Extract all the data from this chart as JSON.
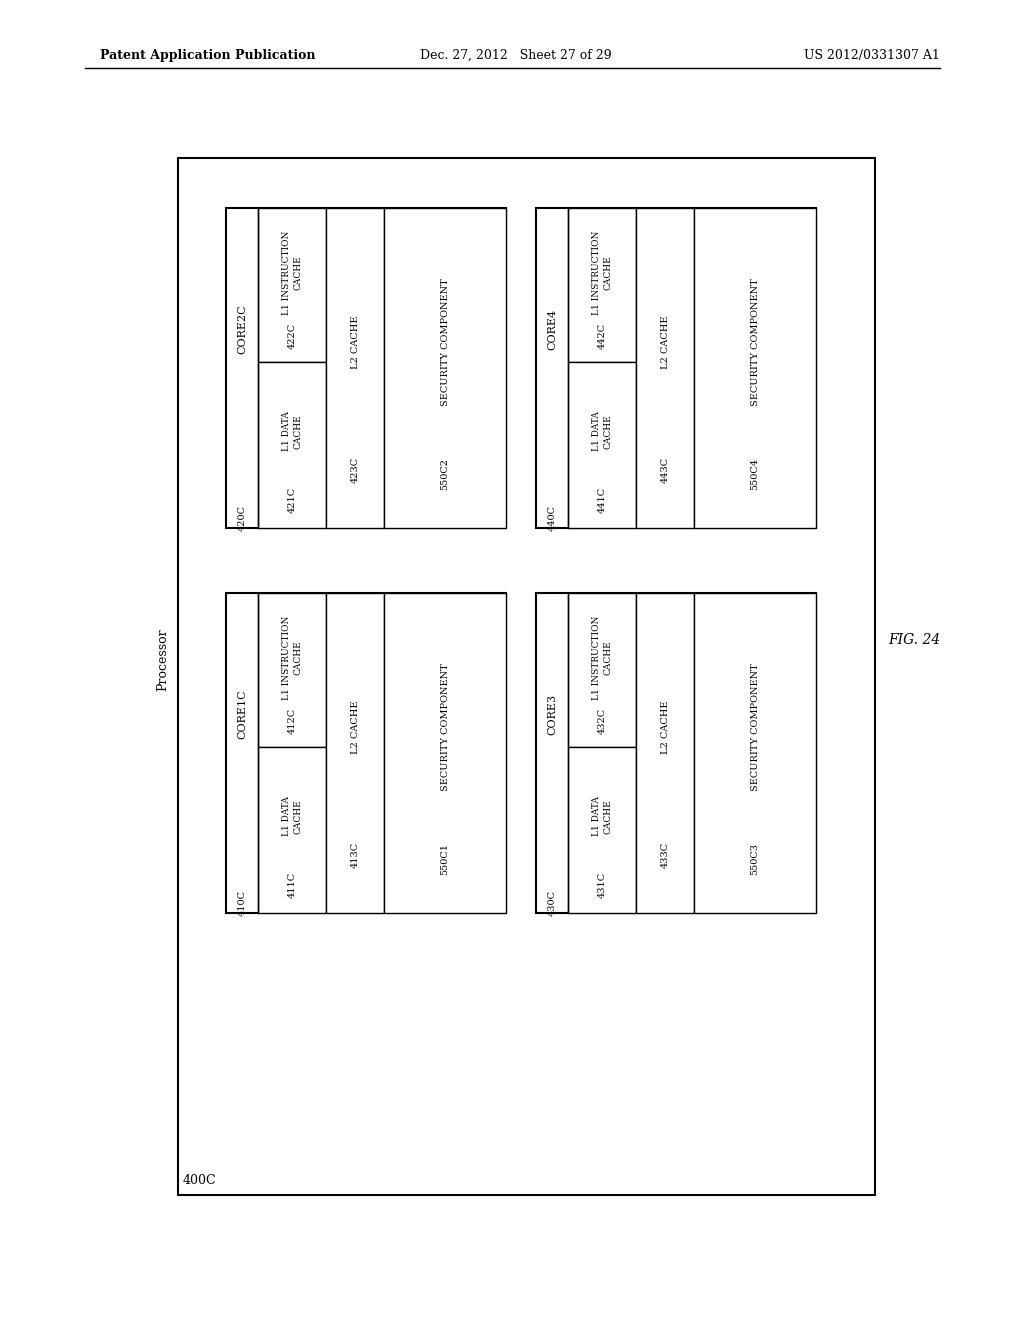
{
  "page_header_left": "Patent Application Publication",
  "page_header_mid": "Dec. 27, 2012   Sheet 27 of 29",
  "page_header_right": "US 2012/0331307 A1",
  "fig_label": "FIG. 24",
  "processor_label": "Processor",
  "outer_box_label": "400C",
  "cores": [
    {
      "id": "CORE2C",
      "box_label": "420C",
      "l1_instr_label": "L1 INSTRUCTION\nCACHE",
      "l1_instr_id": "422C",
      "l1_data_label": "L1 DATA\nCACHE",
      "l1_data_id": "421C",
      "l2_label": "L2 CACHE",
      "l2_id": "423C",
      "sec_label": "SECURITY COMPONENT",
      "sec_id": "550C2",
      "row": 0,
      "col": 0
    },
    {
      "id": "CORE4",
      "box_label": "440C",
      "l1_instr_label": "L1 INSTRUCTION\nCACHE",
      "l1_instr_id": "442C",
      "l1_data_label": "L1 DATA\nCACHE",
      "l1_data_id": "441C",
      "l2_label": "L2 CACHE",
      "l2_id": "443C",
      "sec_label": "SECURITY COMPONENT",
      "sec_id": "550C4",
      "row": 0,
      "col": 1
    },
    {
      "id": "CORE1C",
      "box_label": "410C",
      "l1_instr_label": "L1 INSTRUCTION\nCACHE",
      "l1_instr_id": "412C",
      "l1_data_label": "L1 DATA\nCACHE",
      "l1_data_id": "411C",
      "l2_label": "L2 CACHE",
      "l2_id": "413C",
      "sec_label": "SECURITY COMPONENT",
      "sec_id": "550C1",
      "row": 1,
      "col": 0
    },
    {
      "id": "CORE3",
      "box_label": "430C",
      "l1_instr_label": "L1 INSTRUCTION\nCACHE",
      "l1_instr_id": "432C",
      "l1_data_label": "L1 DATA\nCACHE",
      "l1_data_id": "431C",
      "l2_label": "L2 CACHE",
      "l2_id": "433C",
      "sec_label": "SECURITY COMPONENT",
      "sec_id": "550C3",
      "row": 1,
      "col": 1
    }
  ]
}
